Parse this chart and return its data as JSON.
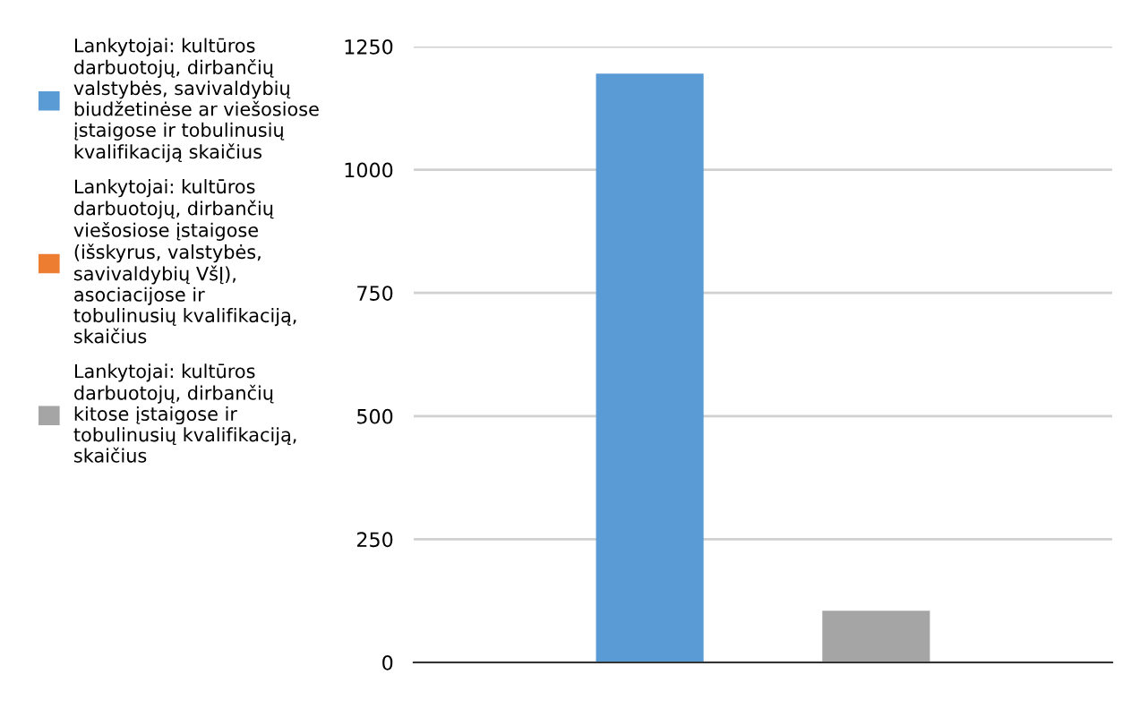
{
  "chart_data": {
    "type": "bar",
    "categories": [
      null
    ],
    "series": [
      {
        "name": "Lankytojai: kultūros darbuotojų, dirbančių valstybės, savivaldybių biudžetinėse ar viešosiose įstaigose ir tobulinusių kvalifikaciją skaičius",
        "color": "#5b9bd5",
        "values": [
          1195
        ]
      },
      {
        "name": "Lankytojai: kultūros darbuotojų, dirbančių viešosiose įstaigose (išskyrus, valstybės, savivaldybių VšĮ), asociacijose ir tobulinusių kvalifikaciją, skaičius",
        "color": "#ed7d31",
        "values": [
          0
        ]
      },
      {
        "name": "Lankytojai: kultūros darbuotojų, dirbančių kitose įstaigose ir tobulinusių kvalifikaciją, skaičius",
        "color": "#a5a5a5",
        "values": [
          105
        ]
      }
    ],
    "ylim": [
      0,
      1250
    ],
    "yticks": [
      0,
      250,
      500,
      750,
      1000,
      1250
    ],
    "grid": "y",
    "legend": "left"
  }
}
